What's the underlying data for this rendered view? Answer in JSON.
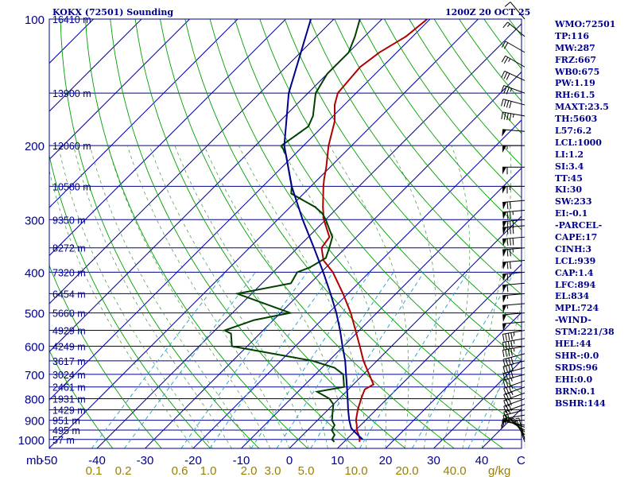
{
  "header": {
    "station": "KOKX (72501) Sounding",
    "time": "1200Z 20 OCT 25"
  },
  "chart_data": {
    "type": "line",
    "title": "KOKX (72501) Sounding",
    "subtitle": "1200Z 20 OCT 25",
    "pressure_unit_label": "mb",
    "temp_unit_label": "C",
    "mixing_unit_label": "g/kg",
    "pressure_ticks": [
      100,
      200,
      300,
      400,
      500,
      600,
      700,
      800,
      900,
      1000
    ],
    "pressure_range": [
      100,
      1050
    ],
    "temperature_ticks": [
      -50,
      -40,
      -30,
      -20,
      -10,
      0,
      10,
      20,
      30,
      40
    ],
    "mixing_ratio_ticks": [
      "0.1",
      "0.2",
      "0.6",
      "1.0",
      "2.0",
      "3.0",
      "5.0",
      "10.0",
      "20.0",
      "40.0"
    ],
    "height_labels": [
      {
        "p": 100,
        "label": "16410 m"
      },
      {
        "p": 150,
        "label": "13900 m"
      },
      {
        "p": 200,
        "label": "12060 m"
      },
      {
        "p": 250,
        "label": "10580 m"
      },
      {
        "p": 300,
        "label": "9350 m"
      },
      {
        "p": 350,
        "label": "8272 m"
      },
      {
        "p": 400,
        "label": "7320 m"
      },
      {
        "p": 450,
        "label": "6454 m"
      },
      {
        "p": 500,
        "label": "5660 m"
      },
      {
        "p": 550,
        "label": "4929 m"
      },
      {
        "p": 600,
        "label": "4249 m"
      },
      {
        "p": 650,
        "label": "3617 m"
      },
      {
        "p": 700,
        "label": "3024 m"
      },
      {
        "p": 750,
        "label": "2461 m"
      },
      {
        "p": 800,
        "label": "1931 m"
      },
      {
        "p": 850,
        "label": "1429 m"
      },
      {
        "p": 900,
        "label": "951 m"
      },
      {
        "p": 950,
        "label": "495 m"
      },
      {
        "p": 1000,
        "label": "57 m"
      }
    ],
    "series": [
      {
        "name": "temperature",
        "color": "#b00000",
        "points": [
          [
            1013,
            13.2
          ],
          [
            1000,
            12.8
          ],
          [
            975,
            11.6
          ],
          [
            950,
            10.2
          ],
          [
            925,
            9.2
          ],
          [
            900,
            8.0
          ],
          [
            850,
            6.2
          ],
          [
            800,
            4.6
          ],
          [
            760,
            3.4
          ],
          [
            740,
            4.2
          ],
          [
            700,
            1.2
          ],
          [
            650,
            -2.8
          ],
          [
            600,
            -6.6
          ],
          [
            550,
            -10.8
          ],
          [
            500,
            -15.4
          ],
          [
            450,
            -21.0
          ],
          [
            400,
            -27.6
          ],
          [
            375,
            -32.0
          ],
          [
            350,
            -35.0
          ],
          [
            330,
            -35.6
          ],
          [
            300,
            -40.4
          ],
          [
            280,
            -43.2
          ],
          [
            250,
            -47.4
          ],
          [
            240,
            -48.8
          ],
          [
            225,
            -50.8
          ],
          [
            200,
            -54.8
          ],
          [
            175,
            -58.6
          ],
          [
            160,
            -62.0
          ],
          [
            150,
            -63.8
          ],
          [
            130,
            -64.6
          ],
          [
            120,
            -63.6
          ],
          [
            110,
            -61.4
          ],
          [
            100,
            -60.6
          ]
        ]
      },
      {
        "name": "dewpoint",
        "color": "#004000",
        "points": [
          [
            1013,
            8.0
          ],
          [
            1000,
            7.0
          ],
          [
            975,
            6.6
          ],
          [
            950,
            5.0
          ],
          [
            925,
            4.6
          ],
          [
            900,
            3.0
          ],
          [
            850,
            1.0
          ],
          [
            825,
            0.0
          ],
          [
            800,
            -2.0
          ],
          [
            770,
            -6.0
          ],
          [
            750,
            -1.4
          ],
          [
            700,
            -4.2
          ],
          [
            675,
            -7.4
          ],
          [
            650,
            -13.4
          ],
          [
            600,
            -33.2
          ],
          [
            560,
            -36.0
          ],
          [
            550,
            -38.0
          ],
          [
            520,
            -34.0
          ],
          [
            500,
            -28.0
          ],
          [
            450,
            -43.0
          ],
          [
            425,
            -34.0
          ],
          [
            400,
            -35.0
          ],
          [
            390,
            -33.4
          ],
          [
            370,
            -32.0
          ],
          [
            350,
            -33.4
          ],
          [
            330,
            -35.0
          ],
          [
            300,
            -40.0
          ],
          [
            290,
            -42.0
          ],
          [
            280,
            -44.8
          ],
          [
            260,
            -52.6
          ],
          [
            250,
            -54.0
          ],
          [
            210,
            -61.8
          ],
          [
            200,
            -64.6
          ],
          [
            180,
            -63.0
          ],
          [
            170,
            -64.2
          ],
          [
            150,
            -68.4
          ],
          [
            135,
            -70.0
          ],
          [
            120,
            -70.0
          ],
          [
            110,
            -72.0
          ],
          [
            100,
            -74.6
          ]
        ]
      },
      {
        "name": "parcel",
        "color": "#00008b",
        "points": [
          [
            1000,
            13.4
          ],
          [
            975,
            11.4
          ],
          [
            950,
            9.4
          ],
          [
            939,
            8.6
          ],
          [
            900,
            6.6
          ],
          [
            850,
            4.2
          ],
          [
            800,
            1.8
          ],
          [
            750,
            -0.8
          ],
          [
            700,
            -3.6
          ],
          [
            650,
            -6.6
          ],
          [
            600,
            -10.2
          ],
          [
            550,
            -14.0
          ],
          [
            500,
            -18.4
          ],
          [
            450,
            -23.6
          ],
          [
            400,
            -29.6
          ],
          [
            350,
            -36.6
          ],
          [
            300,
            -44.8
          ],
          [
            250,
            -54.0
          ],
          [
            200,
            -64.0
          ],
          [
            150,
            -74.0
          ],
          [
            100,
            -84.8
          ]
        ]
      }
    ],
    "wind_barbs": [
      {
        "p": 1013,
        "dir": 340,
        "spd": 5
      },
      {
        "p": 1000,
        "dir": 345,
        "spd": 5
      },
      {
        "p": 990,
        "dir": 330,
        "spd": 5
      },
      {
        "p": 975,
        "dir": 320,
        "spd": 10
      },
      {
        "p": 960,
        "dir": 310,
        "spd": 10
      },
      {
        "p": 950,
        "dir": 300,
        "spd": 10
      },
      {
        "p": 935,
        "dir": 290,
        "spd": 10
      },
      {
        "p": 925,
        "dir": 280,
        "spd": 10
      },
      {
        "p": 900,
        "dir": 270,
        "spd": 15
      },
      {
        "p": 875,
        "dir": 260,
        "spd": 15
      },
      {
        "p": 850,
        "dir": 255,
        "spd": 20
      },
      {
        "p": 825,
        "dir": 250,
        "spd": 25
      },
      {
        "p": 800,
        "dir": 250,
        "spd": 30
      },
      {
        "p": 775,
        "dir": 250,
        "spd": 30
      },
      {
        "p": 750,
        "dir": 250,
        "spd": 35
      },
      {
        "p": 725,
        "dir": 250,
        "spd": 35
      },
      {
        "p": 700,
        "dir": 255,
        "spd": 35
      },
      {
        "p": 675,
        "dir": 255,
        "spd": 40
      },
      {
        "p": 650,
        "dir": 255,
        "spd": 40
      },
      {
        "p": 625,
        "dir": 255,
        "spd": 40
      },
      {
        "p": 600,
        "dir": 260,
        "spd": 45
      },
      {
        "p": 575,
        "dir": 260,
        "spd": 45
      },
      {
        "p": 550,
        "dir": 260,
        "spd": 45
      },
      {
        "p": 525,
        "dir": 265,
        "spd": 50
      },
      {
        "p": 500,
        "dir": 265,
        "spd": 50
      },
      {
        "p": 475,
        "dir": 265,
        "spd": 55
      },
      {
        "p": 450,
        "dir": 265,
        "spd": 55
      },
      {
        "p": 425,
        "dir": 265,
        "spd": 60
      },
      {
        "p": 400,
        "dir": 265,
        "spd": 65
      },
      {
        "p": 375,
        "dir": 265,
        "spd": 70
      },
      {
        "p": 350,
        "dir": 265,
        "spd": 75
      },
      {
        "p": 330,
        "dir": 265,
        "spd": 80
      },
      {
        "p": 310,
        "dir": 265,
        "spd": 80
      },
      {
        "p": 300,
        "dir": 265,
        "spd": 80
      },
      {
        "p": 285,
        "dir": 265,
        "spd": 75
      },
      {
        "p": 270,
        "dir": 265,
        "spd": 70
      },
      {
        "p": 250,
        "dir": 270,
        "spd": 65
      },
      {
        "p": 225,
        "dir": 270,
        "spd": 60
      },
      {
        "p": 200,
        "dir": 270,
        "spd": 55
      },
      {
        "p": 185,
        "dir": 275,
        "spd": 50
      },
      {
        "p": 170,
        "dir": 280,
        "spd": 45
      },
      {
        "p": 160,
        "dir": 285,
        "spd": 40
      },
      {
        "p": 150,
        "dir": 290,
        "spd": 35
      },
      {
        "p": 140,
        "dir": 295,
        "spd": 30
      },
      {
        "p": 130,
        "dir": 300,
        "spd": 25
      },
      {
        "p": 120,
        "dir": 300,
        "spd": 20
      },
      {
        "p": 110,
        "dir": 310,
        "spd": 15
      },
      {
        "p": 100,
        "dir": 320,
        "spd": 10
      }
    ]
  },
  "indices": [
    "WMO:72501",
    "TP:116",
    "MW:287",
    "FRZ:667",
    "WB0:675",
    "PW:1.19",
    "RH:61.5",
    "MAXT:23.5",
    "TH:5603",
    "L57:6.2",
    "LCL:1000",
    "LI:1.2",
    "SI:3.4",
    "TT:45",
    "KI:30",
    "SW:233",
    "EI:-0.1",
    "-PARCEL-",
    "CAPE:17",
    "CINH:3",
    "LCL:939",
    "CAP:1.4",
    "LFC:894",
    "EL:834",
    "MPL:724",
    "-WIND-",
    "STM:221/38",
    "HEL:44",
    "SHR-:0.0",
    "SRDS:96",
    "EHI:0.0",
    "BRN:0.1",
    "BSHR:144"
  ],
  "colors": {
    "isobar": "#00008b",
    "isotherm": "#0000aa",
    "dry_adiabat": "#00a000",
    "moist_adiabat": "#2e8b2e",
    "mixing_ratio": "#33a6cc",
    "label": "#00008b",
    "mixing_label": "#9a8000"
  }
}
